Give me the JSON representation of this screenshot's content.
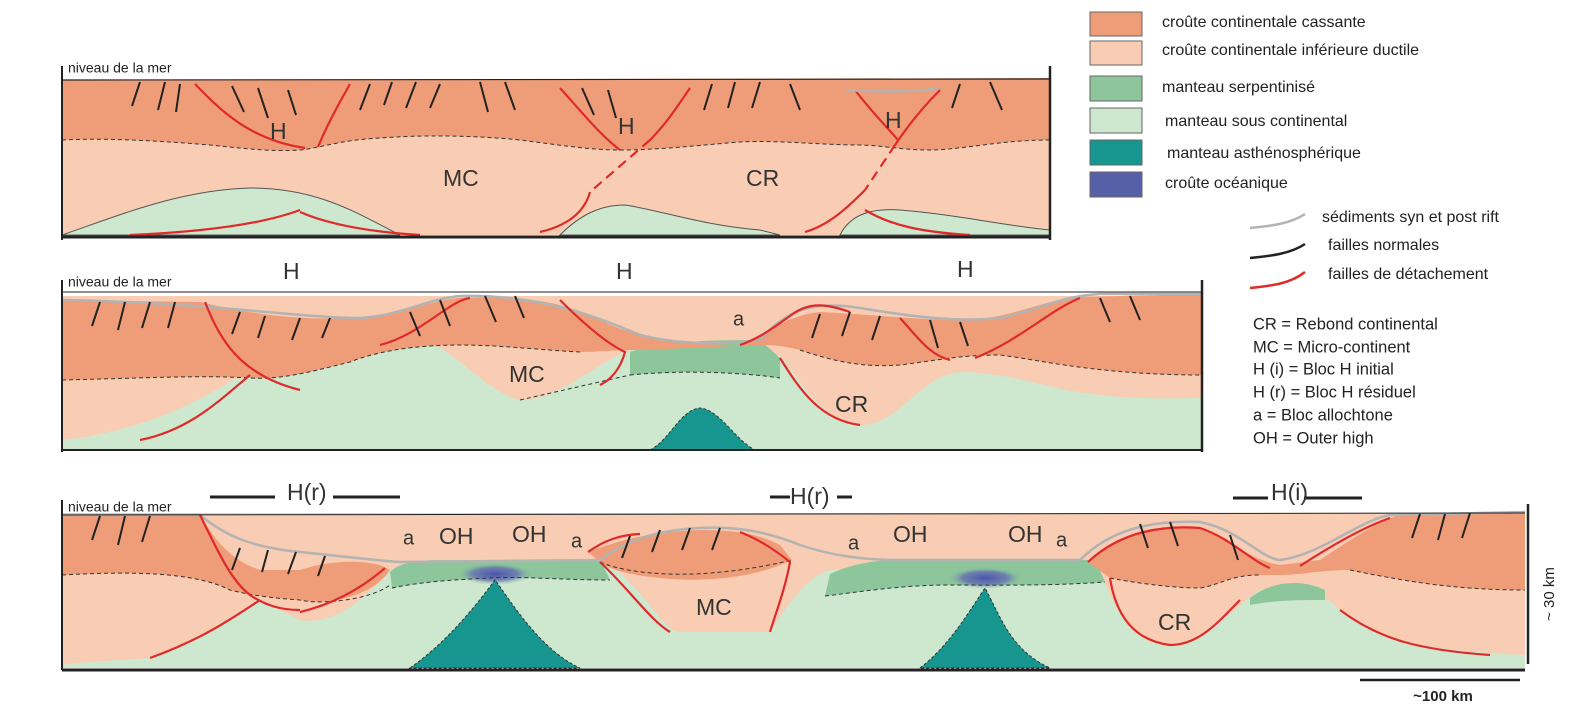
{
  "legend": {
    "units": [
      "croûte continentale cassante",
      "croûte continentale inférieure ductile",
      "manteau serpentinisé",
      "manteau sous continental",
      "manteau asthénosphérique",
      "croûte océanique"
    ],
    "lines": [
      "sédiments syn et post rift",
      "failles normales",
      "failles de détachement"
    ]
  },
  "abbreviations": [
    "CR = Rebond continental",
    "MC = Micro-continent",
    "H (i) = Bloc H initial",
    "H (r) = Bloc H résiduel",
    "a = Bloc allochtone",
    "OH = Outer high"
  ],
  "panels": [
    {
      "sea_level": "niveau de la mer",
      "labels": [
        "H",
        "H",
        "H",
        "MC",
        "CR"
      ]
    },
    {
      "sea_level": "niveau de la mer",
      "labels": [
        "H",
        "H",
        "H",
        "a",
        "MC",
        "CR"
      ]
    },
    {
      "sea_level": "niveau de la mer",
      "labels": [
        "H(r)",
        "H(r)",
        "H(i)",
        "a",
        "OH",
        "OH",
        "a",
        "a",
        "OH",
        "OH",
        "a",
        "MC",
        "CR"
      ]
    }
  ],
  "scale": {
    "vertical": "~ 30 km",
    "horizontal": "~100 km"
  }
}
